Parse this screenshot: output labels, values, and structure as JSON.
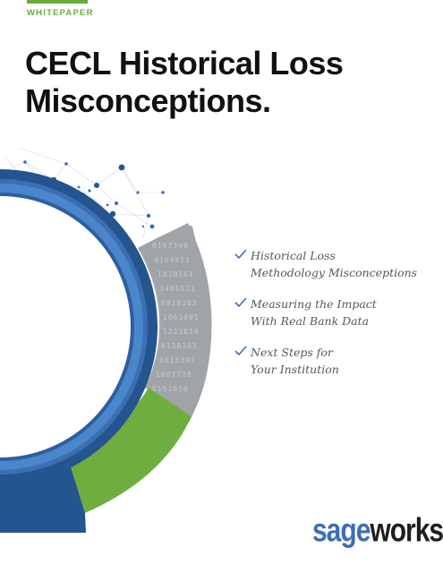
{
  "header": {
    "tag": "WHITEPAPER"
  },
  "title": {
    "line1": "CECL Historical Loss",
    "line2": "Misconceptions."
  },
  "bullets": [
    {
      "line1": "Historical Loss",
      "line2": "Methodology Misconceptions"
    },
    {
      "line1": "Measuring the Impact",
      "line2": "With Real Bank Data"
    },
    {
      "line1": "Next Steps for",
      "line2": "Your Institution"
    }
  ],
  "art": {
    "digit_rows": [
      "0107340",
      "4164911",
      "1830161",
      "3481821",
      "6018163",
      "1061801",
      "1221010",
      "6130161",
      "8615397",
      "1807728",
      "0151010"
    ]
  },
  "logo": {
    "part1": "sage",
    "part2": "works",
    "mark": "™"
  },
  "colors": {
    "accent_green": "#6aab3a",
    "brand_blue": "#3d6eb4",
    "dark_blue": "#24558f",
    "gray_ring": "#9a9ea2",
    "check_blue": "#3d6eb4"
  }
}
